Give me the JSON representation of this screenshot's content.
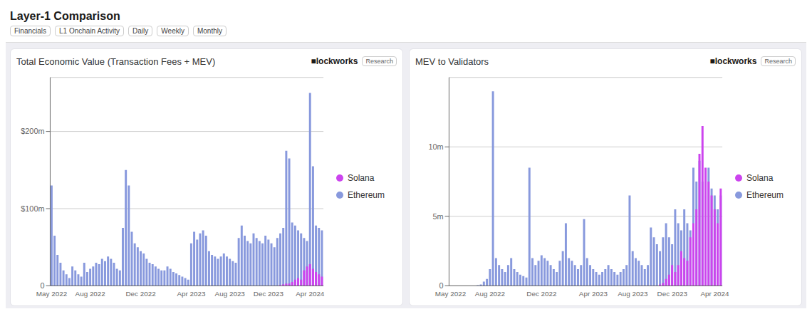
{
  "title": "Layer-1 Comparison",
  "annotations": [
    "Financials",
    "L1 Onchain Activity",
    "Daily",
    "Weekly",
    "Monthly"
  ],
  "chart_data": [
    {
      "type": "bar",
      "title": "Total Economic Value (Transaction Fees + MEV)",
      "annotations": [
        "■lockworks",
        "Research"
      ],
      "categories": [
        "May 2022",
        null,
        null,
        null,
        null,
        null,
        null,
        null,
        null,
        null,
        null,
        null,
        null,
        "Aug 2022",
        null,
        null,
        null,
        null,
        null,
        null,
        null,
        null,
        null,
        null,
        null,
        null,
        null,
        null,
        null,
        null,
        "Dec 2022",
        null,
        null,
        null,
        null,
        null,
        null,
        null,
        null,
        null,
        null,
        null,
        null,
        null,
        null,
        null,
        null,
        "Apr 2023",
        null,
        null,
        null,
        null,
        null,
        null,
        null,
        null,
        null,
        null,
        null,
        null,
        "Aug 2023",
        null,
        null,
        null,
        null,
        null,
        null,
        null,
        null,
        null,
        null,
        null,
        null,
        "Dec 2023",
        null,
        null,
        null,
        null,
        null,
        null,
        null,
        null,
        null,
        null,
        null,
        null,
        null,
        "Apr 2024",
        null,
        null,
        null,
        null
      ],
      "series": [
        {
          "name": "Ethereum",
          "color": "#8899dd",
          "values": [
            130,
            65,
            40,
            30,
            20,
            15,
            10,
            25,
            20,
            15,
            12,
            30,
            18,
            22,
            25,
            30,
            28,
            35,
            32,
            38,
            35,
            30,
            22,
            20,
            75,
            150,
            130,
            70,
            55,
            50,
            45,
            42,
            35,
            30,
            28,
            25,
            22,
            20,
            20,
            25,
            22,
            18,
            16,
            14,
            12,
            10,
            8,
            55,
            70,
            60,
            68,
            72,
            65,
            45,
            40,
            38,
            35,
            38,
            42,
            38,
            35,
            32,
            30,
            62,
            78,
            65,
            58,
            55,
            68,
            62,
            58,
            55,
            65,
            60,
            55,
            50,
            62,
            68,
            75,
            175,
            165,
            82,
            78,
            72,
            68,
            62,
            58,
            250,
            155,
            78,
            75,
            72
          ]
        },
        {
          "name": "Solana",
          "color": "#cc44ee",
          "values": [
            0,
            0,
            0,
            0,
            0,
            0,
            0,
            0,
            0,
            0,
            0,
            0,
            0,
            0,
            0,
            0,
            0,
            0,
            0,
            0,
            0,
            0,
            0,
            0,
            0,
            0,
            0,
            0,
            0,
            0,
            0,
            0,
            0,
            0,
            0,
            0,
            0,
            0,
            0,
            0,
            0,
            0,
            0,
            0,
            0,
            0,
            0,
            0,
            0,
            0,
            0,
            0,
            0,
            0,
            0,
            0,
            0,
            0,
            0,
            0,
            0,
            0,
            0,
            0,
            0,
            0,
            0,
            0,
            0,
            0,
            0,
            0,
            0,
            0,
            0,
            0,
            0,
            1,
            2,
            3,
            3,
            5,
            8,
            10,
            8,
            20,
            25,
            28,
            22,
            18,
            15,
            12
          ]
        }
      ],
      "ylim": [
        0,
        270
      ],
      "yticks": [
        0,
        {
          "value": 100,
          "label": "$100m"
        },
        {
          "value": 200,
          "label": "$200m"
        }
      ],
      "grid": true,
      "legend": "right"
    },
    {
      "type": "bar",
      "title": "MEV to Validators",
      "annotations": [
        "■lockworks",
        "Research"
      ],
      "categories": [
        "May 2022",
        null,
        null,
        null,
        null,
        null,
        null,
        null,
        null,
        null,
        null,
        null,
        null,
        "Aug 2022",
        null,
        null,
        null,
        null,
        null,
        null,
        null,
        null,
        null,
        null,
        null,
        null,
        null,
        null,
        null,
        null,
        "Dec 2022",
        null,
        null,
        null,
        null,
        null,
        null,
        null,
        null,
        null,
        null,
        null,
        null,
        null,
        null,
        null,
        null,
        "Apr 2023",
        null,
        null,
        null,
        null,
        null,
        null,
        null,
        null,
        null,
        null,
        null,
        null,
        "Aug 2023",
        null,
        null,
        null,
        null,
        null,
        null,
        null,
        null,
        null,
        null,
        null,
        null,
        "Dec 2023",
        null,
        null,
        null,
        null,
        null,
        null,
        null,
        null,
        null,
        null,
        null,
        null,
        null,
        "Apr 2024",
        null,
        null
      ],
      "series": [
        {
          "name": "Ethereum",
          "color": "#8899dd",
          "values": [
            0.0,
            0.0,
            0.0,
            0.0,
            0.0,
            0.0,
            0.0,
            0.0,
            0.0,
            0.05,
            0.1,
            0.3,
            0.5,
            1.2,
            14.0,
            2.0,
            1.5,
            1.2,
            1.0,
            1.5,
            2.0,
            1.2,
            1.0,
            0.8,
            0.7,
            0.6,
            8.5,
            2.0,
            1.5,
            1.8,
            2.2,
            2.0,
            1.8,
            1.5,
            1.2,
            1.0,
            1.8,
            2.5,
            4.5,
            2.0,
            1.8,
            1.5,
            1.2,
            1.5,
            4.8,
            2.0,
            1.5,
            1.2,
            1.0,
            0.8,
            1.0,
            1.2,
            1.5,
            1.2,
            1.0,
            0.8,
            1.0,
            1.2,
            1.5,
            6.5,
            2.5,
            2.0,
            1.8,
            1.5,
            1.2,
            1.5,
            4.2,
            3.5,
            3.0,
            2.5,
            3.5,
            4.5,
            3.5,
            3.0,
            5.5,
            4.5,
            4.0,
            5.5,
            4.5,
            4.0,
            8.5,
            7.5,
            9.0,
            7.5,
            6.5,
            8.5,
            7.0,
            6.5,
            5.5,
            6.5
          ]
        },
        {
          "name": "Solana",
          "color": "#cc44ee",
          "values": [
            0.0,
            0.0,
            0.0,
            0.0,
            0.0,
            0.0,
            0.0,
            0.0,
            0.0,
            0.0,
            0.0,
            0.0,
            0.0,
            0.0,
            0.0,
            0.0,
            0.0,
            0.0,
            0.0,
            0.0,
            0.0,
            0.0,
            0.0,
            0.0,
            0.0,
            0.0,
            0.0,
            0.0,
            0.0,
            0.0,
            0.0,
            0.0,
            0.0,
            0.0,
            0.0,
            0.0,
            0.0,
            0.0,
            0.0,
            0.0,
            0.0,
            0.0,
            0.0,
            0.0,
            0.0,
            0.0,
            0.0,
            0.0,
            0.0,
            0.0,
            0.0,
            0.0,
            0.0,
            0.0,
            0.0,
            0.0,
            0.0,
            0.0,
            0.0,
            0.0,
            0.0,
            0.0,
            0.0,
            0.0,
            0.0,
            0.0,
            0.0,
            0.0,
            0.0,
            0.1,
            0.2,
            0.5,
            0.8,
            1.5,
            1.0,
            1.5,
            2.5,
            2.0,
            1.8,
            3.5,
            4.5,
            5.5,
            9.5,
            11.5,
            8.5,
            7.5,
            6.5,
            5.5,
            4.5,
            7.0
          ]
        }
      ],
      "ylim": [
        0,
        15
      ],
      "yticks": [
        0,
        {
          "value": 5,
          "label": "5m"
        },
        {
          "value": 10,
          "label": "10m"
        }
      ],
      "grid": true,
      "legend": "right"
    }
  ]
}
